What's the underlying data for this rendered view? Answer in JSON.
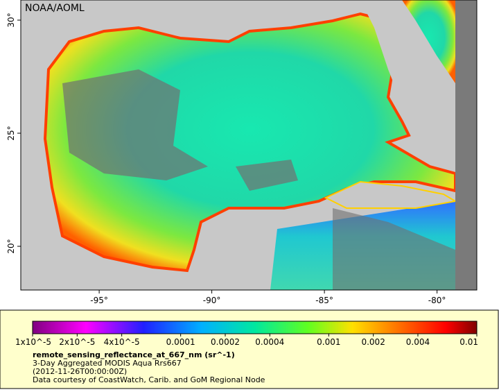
{
  "map": {
    "credit": "NOAA/AOML",
    "lon_ticks": [
      {
        "value": -95,
        "label": "-95°"
      },
      {
        "value": -90,
        "label": "-90°"
      },
      {
        "value": -85,
        "label": "-85°"
      },
      {
        "value": -80,
        "label": "-80°"
      }
    ],
    "lat_ticks": [
      {
        "value": 20,
        "label": "20°"
      },
      {
        "value": 25,
        "label": "25°"
      },
      {
        "value": 30,
        "label": "30°"
      }
    ],
    "colorbar": {
      "log_scale": true,
      "range": [
        1e-05,
        0.01
      ],
      "ticks": [
        {
          "value": 1e-05,
          "label": "1x10^-5"
        },
        {
          "value": 2e-05,
          "label": "2x10^-5"
        },
        {
          "value": 4e-05,
          "label": "4x10^-5"
        },
        {
          "value": 0.0001,
          "label": "0.0001"
        },
        {
          "value": 0.0002,
          "label": "0.0002"
        },
        {
          "value": 0.0004,
          "label": "0.0004"
        },
        {
          "value": 0.001,
          "label": "0.001"
        },
        {
          "value": 0.002,
          "label": "0.002"
        },
        {
          "value": 0.004,
          "label": "0.004"
        },
        {
          "value": 0.01,
          "label": "0.01"
        }
      ]
    },
    "legend": {
      "variable": "remote_sensing_reflectance_at_667_nm (sr^-1)",
      "dataset": "3-Day Aggregated MODIS Aqua Rrs667",
      "time": "(2012-11-26T00:00:00Z)",
      "courtesy": "Data courtesy of CoastWatch, Carib. and GoM Regional Node"
    }
  }
}
